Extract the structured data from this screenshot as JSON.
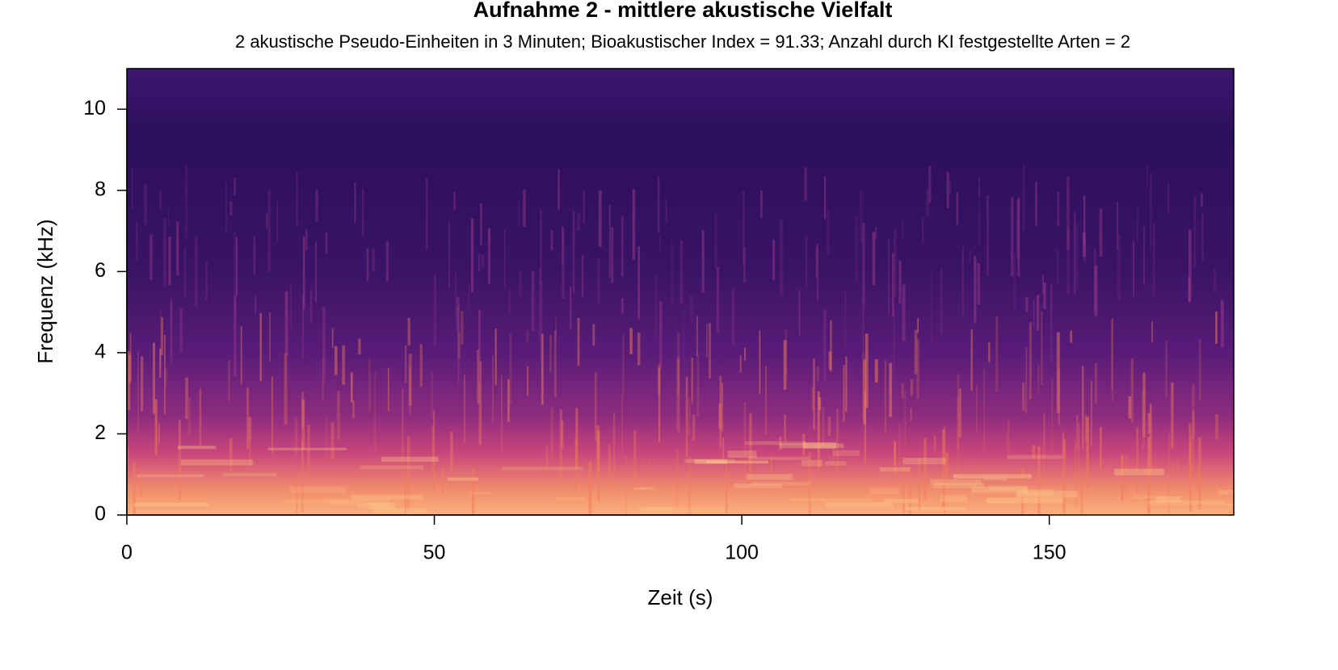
{
  "chart_data": {
    "type": "spectrogram",
    "title": "Aufnahme 2 - mittlere akustische Vielfalt",
    "subtitle": "2 akustische Pseudo-Einheiten in 3 Minuten; Bioakustischer Index = 91.33; Anzahl durch KI festgestellte Arten = 2",
    "x_label": "Zeit (s)",
    "y_label": "Frequenz (kHz)",
    "xlim": [
      0,
      180
    ],
    "ylim": [
      0,
      11
    ],
    "xticks": [
      0,
      50,
      100,
      150
    ],
    "yticks": [
      0,
      2,
      4,
      6,
      8,
      10
    ],
    "colormap": "magma"
  }
}
